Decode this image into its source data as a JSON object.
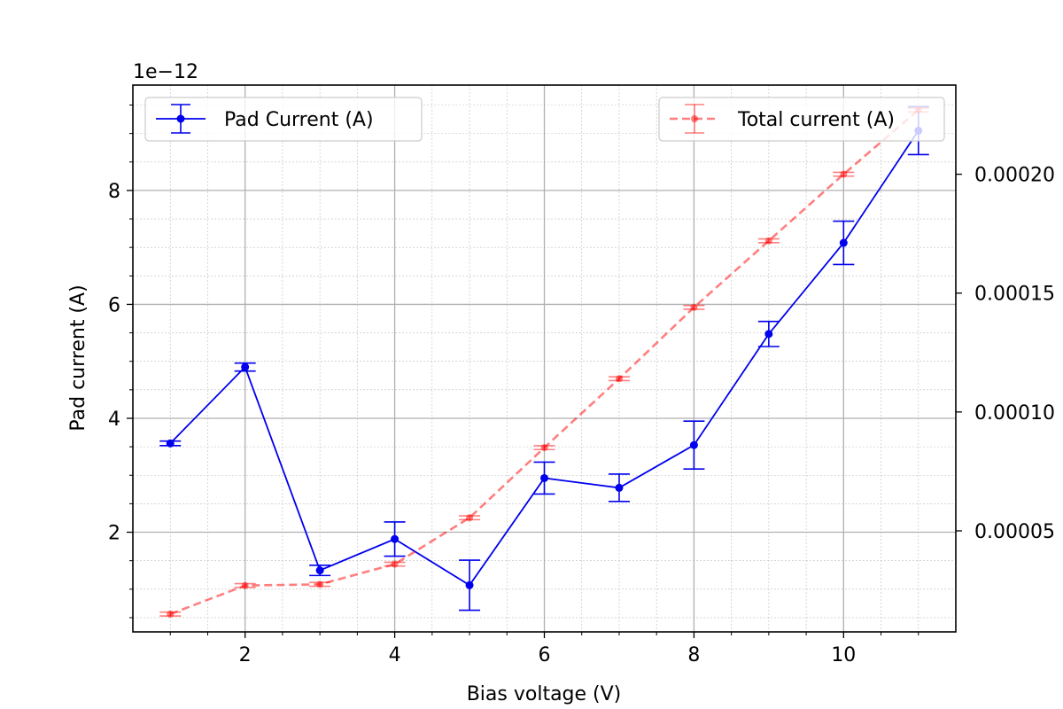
{
  "chart_data": {
    "type": "line",
    "xlabel": "Bias voltage (V)",
    "ylabel": "Pad current (A)",
    "y_offset_label": "1e−12",
    "xlim": [
      0.5,
      11.5
    ],
    "ylim": [
      0.25,
      9.85
    ],
    "y2lim": [
      7.5e-06,
      0.0002375
    ],
    "x_ticks": [
      2,
      4,
      6,
      8,
      10
    ],
    "x_tick_labels": [
      "2",
      "4",
      "6",
      "8",
      "10"
    ],
    "y_ticks": [
      2,
      4,
      6,
      8
    ],
    "y_tick_labels": [
      "2",
      "4",
      "6",
      "8"
    ],
    "y2_ticks": [
      5e-05,
      0.0001,
      0.00015,
      0.0002
    ],
    "y2_tick_labels": [
      "0.00005",
      "0.00010",
      "0.00015",
      "0.00020"
    ],
    "grid": true,
    "series": [
      {
        "name": "Pad Current (A)",
        "axis": "left",
        "color": "#0000ee",
        "style": "solid",
        "x": [
          1,
          2,
          3,
          4,
          5,
          6,
          7,
          8,
          9,
          10,
          11
        ],
        "y": [
          3.56,
          4.9,
          1.33,
          1.88,
          1.07,
          2.95,
          2.78,
          3.53,
          5.48,
          7.08,
          9.05
        ],
        "err": [
          0.04,
          0.07,
          0.09,
          0.3,
          0.44,
          0.28,
          0.24,
          0.42,
          0.22,
          0.38,
          0.42
        ]
      },
      {
        "name": "Total current (A)",
        "axis": "right",
        "color": "#ff0000",
        "style": "dashed",
        "x": [
          1,
          2,
          3,
          4,
          5,
          6,
          7,
          8,
          9,
          10,
          11
        ],
        "y": [
          1.5e-05,
          2.7e-05,
          2.75e-05,
          3.6e-05,
          5.55e-05,
          8.5e-05,
          0.000114,
          0.000144,
          0.000172,
          0.0002,
          0.000227
        ],
        "err": [
          8e-07,
          8e-07,
          8e-07,
          8e-07,
          8e-07,
          8e-07,
          8e-07,
          8e-07,
          8e-07,
          8e-07,
          8e-07
        ]
      }
    ],
    "legend": [
      {
        "label": "Pad Current (A)",
        "placement": "upper-left"
      },
      {
        "label": "Total current (A)",
        "placement": "upper-right"
      }
    ]
  }
}
